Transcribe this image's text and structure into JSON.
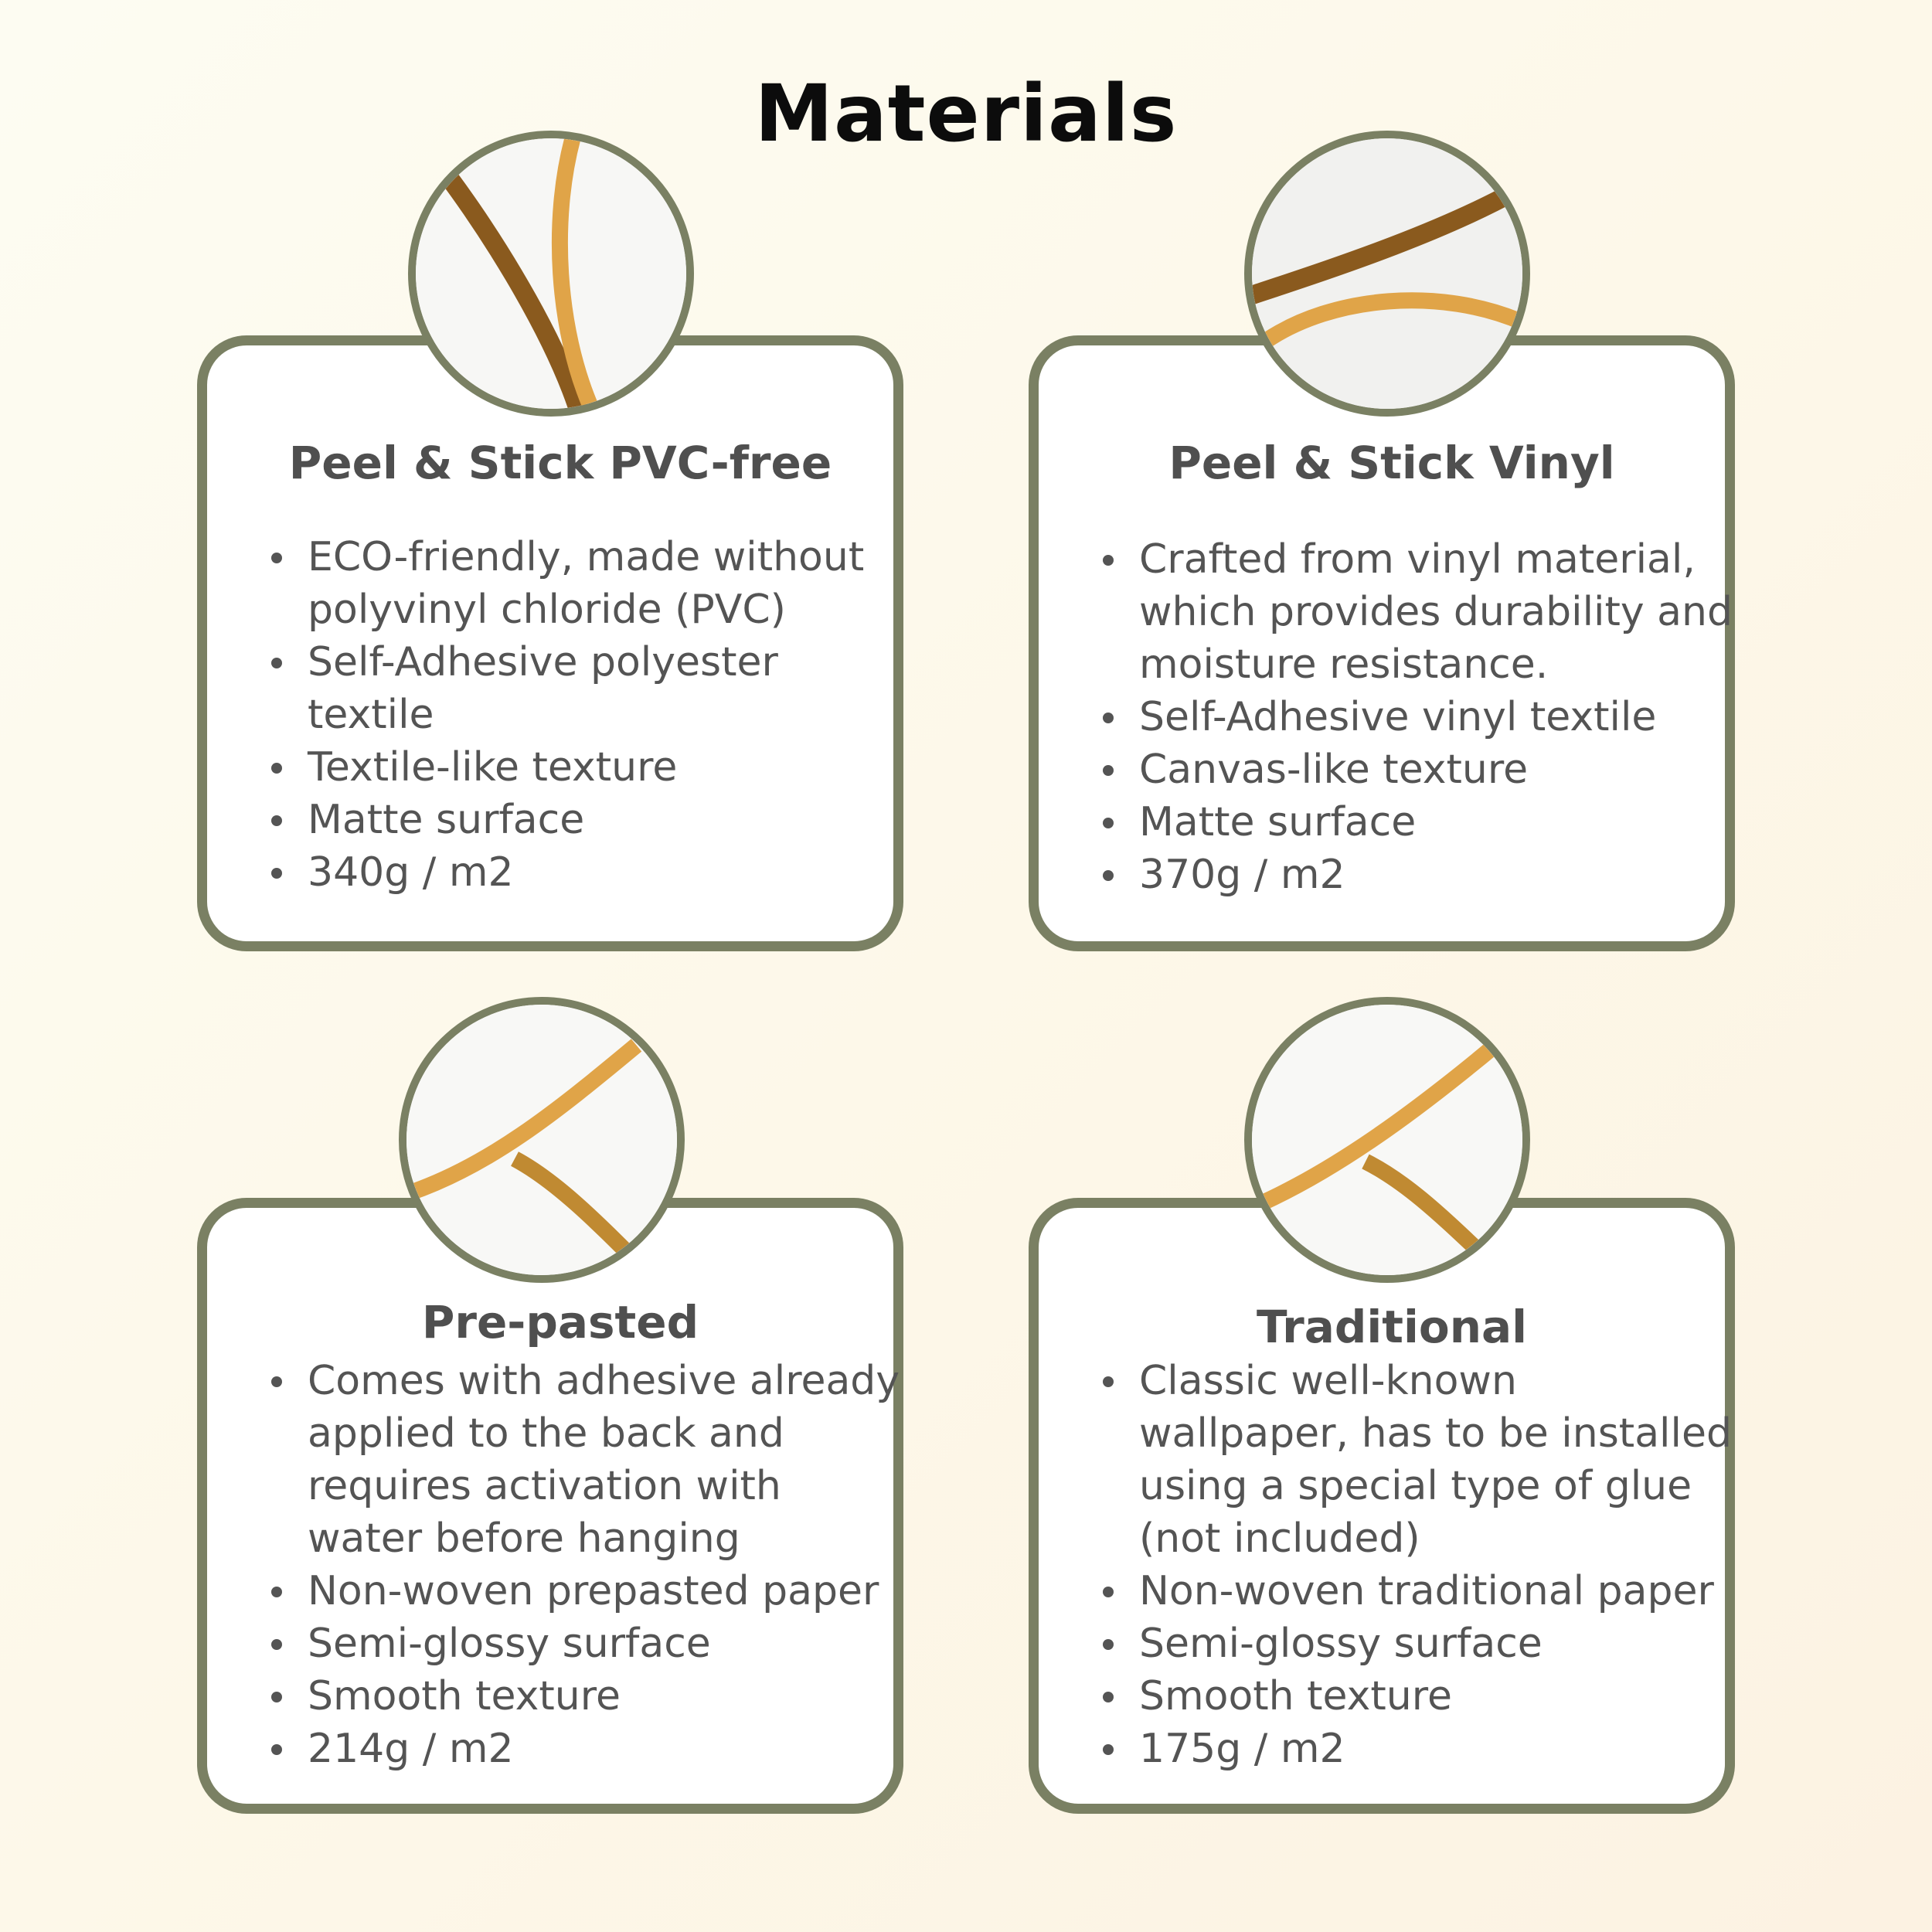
{
  "title": "Materials",
  "colors": {
    "border": "#7a8063",
    "text": "#545454",
    "accent_dark": "#8a5a1e",
    "accent_gold": "#e0a448"
  },
  "cards": [
    {
      "heading": "Peel & Stick PVC-free",
      "items": [
        "ECO-friendly, made without polyvinyl chloride (PVC)",
        "Self-Adhesive polyester textile",
        "Textile-like texture",
        "Matte surface",
        "340g / m2"
      ]
    },
    {
      "heading": "Peel & Stick Vinyl",
      "items": [
        "Crafted from vinyl material, which provides durability and moisture resistance.",
        "Self-Adhesive vinyl textile",
        "Canvas-like texture",
        "Matte surface",
        "370g / m2"
      ]
    },
    {
      "heading": "Pre-pasted",
      "items": [
        "Comes with adhesive already applied to the back and requires activation with water before hanging",
        "Non-woven prepasted paper",
        "Semi-glossy surface",
        "Smooth texture",
        "214g / m2"
      ]
    },
    {
      "heading": "Traditional",
      "items": [
        "Classic well-known wallpaper, has to be installed using a special type of glue (not included)",
        "Non-woven traditional paper",
        "Semi-glossy surface",
        "Smooth texture",
        "175g / m2"
      ]
    }
  ]
}
